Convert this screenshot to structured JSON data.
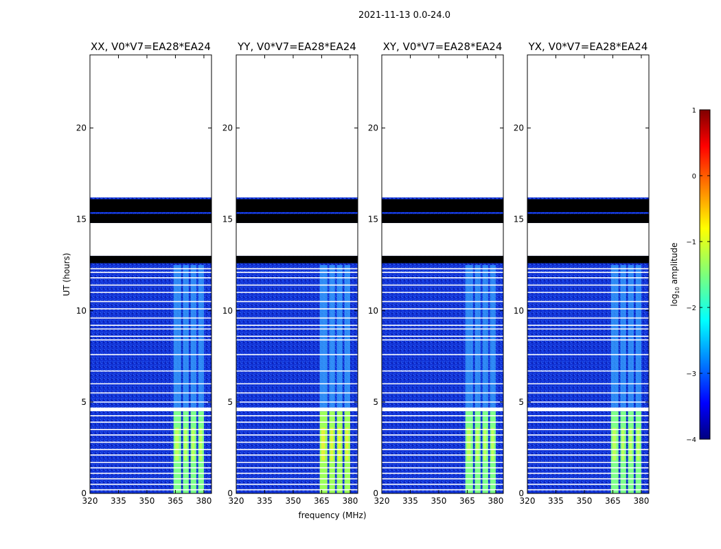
{
  "chart_data": {
    "type": "heatmap",
    "suptitle": "2021-11-13 0.0-24.0",
    "xlabel": "frequency (MHz)",
    "ylabel": "UT (hours)",
    "xlim": [
      320,
      384
    ],
    "ylim": [
      0,
      24
    ],
    "xticks": [
      320,
      335,
      350,
      365,
      380
    ],
    "yticks": [
      0,
      5,
      10,
      15,
      20
    ],
    "panels": [
      {
        "title": "XX, V0*V7=EA28*EA24",
        "band_intensity": 0.62
      },
      {
        "title": "YY, V0*V7=EA28*EA24",
        "band_intensity": 0.7
      },
      {
        "title": "XY, V0*V7=EA28*EA24",
        "band_intensity": 0.55
      },
      {
        "title": "YX, V0*V7=EA28*EA24",
        "band_intensity": 0.6
      }
    ],
    "rfi_band_mhz": [
      [
        364,
        368
      ],
      [
        369,
        372
      ],
      [
        373,
        376
      ],
      [
        377,
        380
      ]
    ],
    "no_data_hours": [
      [
        16.2,
        24.0
      ],
      [
        13.0,
        14.8
      ]
    ],
    "flagged_hours": [
      [
        14.8,
        15.3
      ],
      [
        15.4,
        16.1
      ],
      [
        12.6,
        13.0
      ],
      [
        4.5,
        4.7
      ]
    ],
    "gap_lines_hours": [
      0.2,
      0.5,
      0.8,
      1.1,
      1.4,
      1.7,
      2.1,
      2.4,
      2.8,
      3.2,
      3.5,
      3.9,
      4.25,
      7.6,
      8.4,
      8.6,
      9.0,
      9.2,
      9.6,
      10.1,
      10.5,
      11.0,
      11.4,
      11.8,
      12.1,
      12.3,
      5.0,
      5.5,
      6.0,
      6.7
    ],
    "colorbar": {
      "label_prefix": "log",
      "label_sub": "10",
      "label_suffix": " amplitude",
      "range": [
        -4,
        1
      ],
      "ticks": [
        "1",
        "0",
        "−1",
        "−2",
        "−3",
        "−4"
      ],
      "colormap": "jet"
    }
  }
}
